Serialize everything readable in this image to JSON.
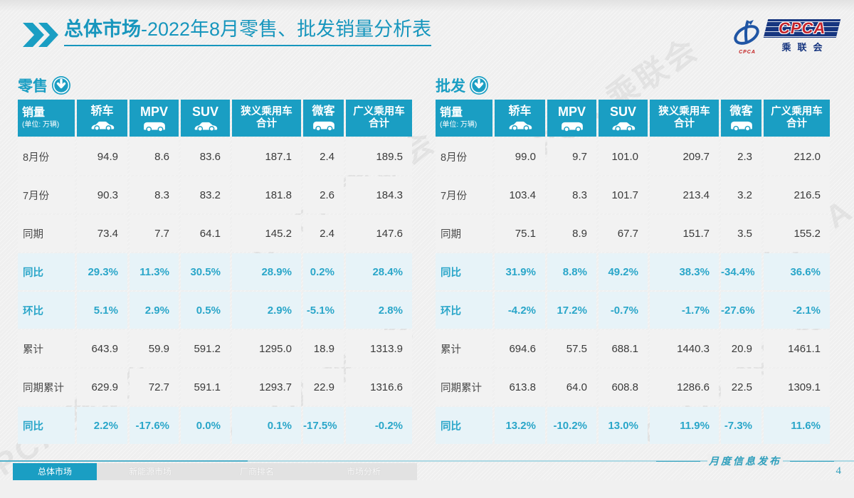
{
  "header": {
    "title_bold": "总体市场",
    "title_rest": "-2022年8月零售、批发销量分析表"
  },
  "logo": {
    "cpca": "CPCA",
    "name_cn": "乘联会",
    "emblem_caption": "CPCA"
  },
  "columns": [
    {
      "label": "销量",
      "sub": "(单位: 万辆)",
      "name": "sales-volume"
    },
    {
      "label": "轿车",
      "icon": "sedan-icon",
      "size": "normal",
      "name": "sedan"
    },
    {
      "label": "MPV",
      "icon": "mpv-icon",
      "size": "big",
      "name": "mpv"
    },
    {
      "label": "SUV",
      "icon": "suv-icon",
      "size": "big",
      "name": "suv"
    },
    {
      "label": "狭义乘用车",
      "label2": "合计",
      "size": "mid",
      "name": "narrow-pv-total"
    },
    {
      "label": "微客",
      "icon": "microvan-icon",
      "size": "normal",
      "name": "microvan"
    },
    {
      "label": "广义乘用车",
      "label2": "合计",
      "size": "mid",
      "name": "broad-pv-total"
    }
  ],
  "tables": [
    {
      "section_label": "零售",
      "rows": [
        {
          "label": "8月份",
          "type": "normal",
          "values": [
            "94.9",
            "8.6",
            "83.6",
            "187.1",
            "2.4",
            "189.5"
          ]
        },
        {
          "label": "7月份",
          "type": "normal",
          "values": [
            "90.3",
            "8.3",
            "83.2",
            "181.8",
            "2.6",
            "184.3"
          ]
        },
        {
          "label": "同期",
          "type": "normal",
          "values": [
            "73.4",
            "7.7",
            "64.1",
            "145.2",
            "2.4",
            "147.6"
          ]
        },
        {
          "label": "同比",
          "type": "percent",
          "values": [
            "29.3%",
            "11.3%",
            "30.5%",
            "28.9%",
            "0.2%",
            "28.4%"
          ]
        },
        {
          "label": "环比",
          "type": "percent",
          "values": [
            "5.1%",
            "2.9%",
            "0.5%",
            "2.9%",
            "-5.1%",
            "2.8%"
          ]
        },
        {
          "label": "累计",
          "type": "normal",
          "values": [
            "643.9",
            "59.9",
            "591.2",
            "1295.0",
            "18.9",
            "1313.9"
          ]
        },
        {
          "label": "同期累计",
          "type": "normal",
          "values": [
            "629.9",
            "72.7",
            "591.1",
            "1293.7",
            "22.9",
            "1316.6"
          ]
        },
        {
          "label": "同比",
          "type": "percent",
          "values": [
            "2.2%",
            "-17.6%",
            "0.0%",
            "0.1%",
            "-17.5%",
            "-0.2%"
          ]
        }
      ]
    },
    {
      "section_label": "批发",
      "rows": [
        {
          "label": "8月份",
          "type": "normal",
          "values": [
            "99.0",
            "9.7",
            "101.0",
            "209.7",
            "2.3",
            "212.0"
          ]
        },
        {
          "label": "7月份",
          "type": "normal",
          "values": [
            "103.4",
            "8.3",
            "101.7",
            "213.4",
            "3.2",
            "216.5"
          ]
        },
        {
          "label": "同期",
          "type": "normal",
          "values": [
            "75.1",
            "8.9",
            "67.7",
            "151.7",
            "3.5",
            "155.2"
          ]
        },
        {
          "label": "同比",
          "type": "percent",
          "values": [
            "31.9%",
            "8.8%",
            "49.2%",
            "38.3%",
            "-34.4%",
            "36.6%"
          ]
        },
        {
          "label": "环比",
          "type": "percent",
          "values": [
            "-4.2%",
            "17.2%",
            "-0.7%",
            "-1.7%",
            "-27.6%",
            "-2.1%"
          ]
        },
        {
          "label": "累计",
          "type": "normal",
          "values": [
            "694.6",
            "57.5",
            "688.1",
            "1440.3",
            "20.9",
            "1461.1"
          ]
        },
        {
          "label": "同期累计",
          "type": "normal",
          "values": [
            "613.8",
            "64.0",
            "608.8",
            "1286.6",
            "22.5",
            "1309.1"
          ]
        },
        {
          "label": "同比",
          "type": "percent",
          "values": [
            "13.2%",
            "-10.2%",
            "13.0%",
            "11.9%",
            "-7.3%",
            "11.6%"
          ]
        }
      ]
    }
  ],
  "footer": {
    "tabs": [
      {
        "label": "总体市场",
        "active": true
      },
      {
        "label": "新能源市场",
        "active": false
      },
      {
        "label": "厂商排名",
        "active": false
      },
      {
        "label": "市场分析",
        "active": false
      }
    ],
    "publish_label": "月度信息发布",
    "page_number": "4"
  },
  "watermark": {
    "text": "CPCA 乘联会"
  },
  "colors": {
    "accent_teal": "#1a9ec3",
    "title_teal": "#1796bd",
    "percent_text": "#2aa6c9",
    "percent_row_bg": "#e7f3f8",
    "logo_navy": "#16357f",
    "logo_red": "#c4242b",
    "page_bg": "#efefef"
  }
}
